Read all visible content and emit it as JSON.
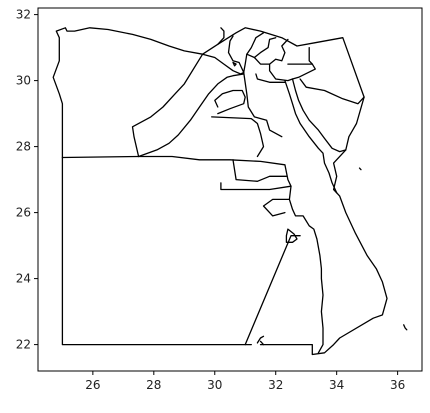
{
  "map": {
    "projection": "plate-carree",
    "bounds": {
      "lon": [
        24.2,
        36.8
      ],
      "lat": [
        21.2,
        32.2
      ]
    },
    "x_ticks": [
      26,
      28,
      30,
      32,
      34,
      36
    ],
    "y_ticks": [
      22,
      24,
      26,
      28,
      30,
      32
    ],
    "line_color": "#000000",
    "fill_color": "none",
    "grid": false,
    "polylines": [
      {
        "name": "outer-border-west-south",
        "coords": [
          [
            31.2,
            22.0
          ],
          [
            25.0,
            22.0
          ],
          [
            25.0,
            29.3
          ],
          [
            24.9,
            29.6
          ],
          [
            24.7,
            30.1
          ],
          [
            24.9,
            30.6
          ],
          [
            24.9,
            31.3
          ],
          [
            24.8,
            31.5
          ],
          [
            25.1,
            31.6
          ],
          [
            25.15,
            31.5
          ],
          [
            25.4,
            31.5
          ],
          [
            25.9,
            31.6
          ],
          [
            26.5,
            31.55
          ],
          [
            27.3,
            31.4
          ],
          [
            27.9,
            31.25
          ],
          [
            28.5,
            31.05
          ],
          [
            29.0,
            30.9
          ],
          [
            29.6,
            30.8
          ],
          [
            30.1,
            31.1
          ],
          [
            30.7,
            31.45
          ],
          [
            31.0,
            31.6
          ],
          [
            31.5,
            31.5
          ],
          [
            32.2,
            31.3
          ],
          [
            32.7,
            31.05
          ],
          [
            33.3,
            31.15
          ],
          [
            34.2,
            31.3
          ],
          [
            34.9,
            29.5
          ],
          [
            34.65,
            28.7
          ],
          [
            34.4,
            28.3
          ],
          [
            34.3,
            27.9
          ],
          [
            33.9,
            27.5
          ],
          [
            34.0,
            27.1
          ],
          [
            33.9,
            26.7
          ],
          [
            34.1,
            26.5
          ],
          [
            34.3,
            26.0
          ],
          [
            34.6,
            25.4
          ],
          [
            35.0,
            24.7
          ],
          [
            35.3,
            24.3
          ],
          [
            35.5,
            23.9
          ],
          [
            35.65,
            23.4
          ],
          [
            35.5,
            22.9
          ],
          [
            35.2,
            22.8
          ],
          [
            34.1,
            22.2
          ],
          [
            33.9,
            22.0
          ],
          [
            33.6,
            21.75
          ],
          [
            33.2,
            21.7
          ],
          [
            33.2,
            22.0
          ],
          [
            32.5,
            22.0
          ],
          [
            31.5,
            22.0
          ]
        ]
      },
      {
        "name": "gulf-of-suez-shore",
        "coords": [
          [
            32.3,
            30.0
          ],
          [
            32.45,
            29.6
          ],
          [
            32.55,
            29.3
          ],
          [
            32.65,
            29.0
          ],
          [
            32.8,
            28.7
          ],
          [
            33.1,
            28.3
          ],
          [
            33.4,
            27.95
          ],
          [
            33.55,
            27.8
          ],
          [
            33.6,
            27.5
          ],
          [
            33.75,
            27.2
          ],
          [
            33.85,
            26.9
          ],
          [
            34.0,
            26.6
          ]
        ]
      },
      {
        "name": "sinai-west-coast",
        "coords": [
          [
            32.55,
            30.05
          ],
          [
            32.65,
            29.7
          ],
          [
            32.75,
            29.4
          ],
          [
            32.9,
            29.1
          ],
          [
            33.1,
            28.8
          ],
          [
            33.4,
            28.5
          ],
          [
            33.6,
            28.25
          ],
          [
            33.85,
            27.95
          ],
          [
            34.1,
            27.85
          ],
          [
            34.3,
            27.9
          ]
        ]
      },
      {
        "name": "matruh-east",
        "coords": [
          [
            29.6,
            30.8
          ],
          [
            29.0,
            29.9
          ],
          [
            28.7,
            29.6
          ],
          [
            28.3,
            29.2
          ],
          [
            27.9,
            28.9
          ],
          [
            27.3,
            28.6
          ],
          [
            27.35,
            28.3
          ],
          [
            27.5,
            27.7
          ]
        ]
      },
      {
        "name": "matruh-south",
        "coords": [
          [
            25.0,
            27.67
          ],
          [
            27.5,
            27.7
          ],
          [
            28.0,
            27.7
          ],
          [
            28.6,
            27.7
          ],
          [
            29.5,
            27.6
          ],
          [
            30.5,
            27.6
          ],
          [
            31.5,
            27.55
          ],
          [
            32.3,
            27.45
          ],
          [
            32.4,
            27.0
          ],
          [
            32.5,
            26.8
          ],
          [
            32.45,
            26.4
          ],
          [
            32.55,
            26.1
          ],
          [
            32.65,
            25.9
          ],
          [
            32.9,
            25.9
          ],
          [
            33.1,
            25.6
          ],
          [
            33.25,
            25.5
          ],
          [
            33.35,
            25.2
          ],
          [
            33.45,
            24.7
          ],
          [
            33.5,
            24.3
          ],
          [
            33.5,
            24.0
          ],
          [
            33.55,
            23.5
          ],
          [
            33.5,
            23.0
          ],
          [
            33.55,
            22.5
          ],
          [
            33.55,
            22.0
          ],
          [
            33.4,
            21.75
          ]
        ]
      },
      {
        "name": "alexandria-beheira-line",
        "coords": [
          [
            29.6,
            30.8
          ],
          [
            30.0,
            30.7
          ],
          [
            30.3,
            30.5
          ],
          [
            30.6,
            30.3
          ],
          [
            30.85,
            30.2
          ],
          [
            30.95,
            30.25
          ]
        ]
      },
      {
        "name": "giza-west-line",
        "coords": [
          [
            27.5,
            27.7
          ],
          [
            28.1,
            27.9
          ],
          [
            28.5,
            28.1
          ],
          [
            28.8,
            28.35
          ],
          [
            29.2,
            28.8
          ],
          [
            29.5,
            29.2
          ],
          [
            29.8,
            29.6
          ],
          [
            30.1,
            29.9
          ],
          [
            30.4,
            30.1
          ],
          [
            30.6,
            30.15
          ],
          [
            30.95,
            30.2
          ]
        ]
      },
      {
        "name": "fayoum-border",
        "coords": [
          [
            30.1,
            29.0
          ],
          [
            30.5,
            29.15
          ],
          [
            30.95,
            29.3
          ],
          [
            31.0,
            29.5
          ],
          [
            30.9,
            29.7
          ],
          [
            30.6,
            29.7
          ],
          [
            30.25,
            29.6
          ],
          [
            30.0,
            29.4
          ],
          [
            30.1,
            29.2
          ]
        ]
      },
      {
        "name": "beni-suef-minya-line",
        "coords": [
          [
            29.9,
            28.9
          ],
          [
            31.2,
            28.85
          ],
          [
            31.4,
            28.7
          ],
          [
            31.5,
            28.4
          ],
          [
            31.6,
            28.0
          ],
          [
            31.4,
            27.7
          ]
        ]
      },
      {
        "name": "giza-east-line",
        "coords": [
          [
            30.95,
            30.25
          ],
          [
            31.05,
            29.6
          ],
          [
            31.1,
            29.2
          ],
          [
            31.3,
            28.9
          ],
          [
            31.7,
            28.8
          ],
          [
            31.8,
            28.5
          ],
          [
            32.2,
            28.3
          ]
        ]
      },
      {
        "name": "assiut-sohag-line",
        "coords": [
          [
            30.6,
            27.6
          ],
          [
            30.7,
            27.0
          ],
          [
            31.4,
            26.95
          ],
          [
            31.8,
            27.1
          ],
          [
            32.35,
            27.1
          ]
        ]
      },
      {
        "name": "qena-block",
        "coords": [
          [
            30.2,
            26.9
          ],
          [
            30.2,
            26.7
          ],
          [
            31.8,
            26.7
          ],
          [
            32.5,
            26.8
          ]
        ]
      },
      {
        "name": "red-sea-west-line",
        "coords": [
          [
            32.45,
            26.4
          ],
          [
            31.9,
            26.4
          ],
          [
            31.6,
            26.2
          ],
          [
            31.8,
            26.0
          ],
          [
            31.9,
            25.9
          ],
          [
            32.3,
            26.0
          ]
        ]
      },
      {
        "name": "luxor-aswan-line",
        "coords": [
          [
            32.4,
            25.5
          ],
          [
            32.6,
            25.35
          ],
          [
            32.7,
            25.2
          ],
          [
            32.55,
            25.1
          ],
          [
            32.35,
            25.1
          ],
          [
            32.35,
            25.3
          ],
          [
            32.4,
            25.5
          ]
        ]
      },
      {
        "name": "new-valley-aswan-line",
        "coords": [
          [
            31.0,
            22.0
          ],
          [
            32.5,
            25.3
          ],
          [
            32.8,
            25.3
          ]
        ]
      },
      {
        "name": "north-delta-1",
        "coords": [
          [
            30.95,
            30.25
          ],
          [
            30.8,
            30.55
          ],
          [
            30.6,
            30.6
          ],
          [
            30.45,
            30.85
          ],
          [
            30.5,
            31.2
          ],
          [
            30.6,
            31.35
          ]
        ]
      },
      {
        "name": "north-delta-2",
        "coords": [
          [
            30.95,
            30.25
          ],
          [
            31.0,
            30.5
          ],
          [
            31.05,
            30.8
          ],
          [
            31.2,
            31.0
          ],
          [
            31.35,
            31.3
          ],
          [
            31.6,
            31.45
          ]
        ]
      },
      {
        "name": "north-delta-3",
        "coords": [
          [
            31.05,
            30.8
          ],
          [
            31.3,
            30.7
          ],
          [
            31.5,
            30.85
          ],
          [
            31.75,
            31.0
          ],
          [
            31.8,
            31.25
          ],
          [
            32.0,
            31.3
          ]
        ]
      },
      {
        "name": "north-delta-4",
        "coords": [
          [
            31.3,
            30.7
          ],
          [
            31.5,
            30.5
          ],
          [
            31.8,
            30.5
          ],
          [
            32.0,
            30.65
          ],
          [
            32.2,
            30.6
          ],
          [
            32.3,
            30.85
          ],
          [
            32.2,
            31.05
          ],
          [
            32.4,
            31.25
          ]
        ]
      },
      {
        "name": "sharqia-ismailia-line",
        "coords": [
          [
            31.8,
            30.5
          ],
          [
            31.8,
            30.3
          ],
          [
            32.0,
            30.05
          ],
          [
            32.4,
            30.0
          ],
          [
            32.55,
            30.05
          ]
        ]
      },
      {
        "name": "cairo-suez-line",
        "coords": [
          [
            31.35,
            30.2
          ],
          [
            31.4,
            30.05
          ],
          [
            31.8,
            29.95
          ],
          [
            32.3,
            29.95
          ]
        ]
      },
      {
        "name": "ismailia-sinai-line",
        "coords": [
          [
            32.4,
            30.5
          ],
          [
            33.2,
            30.5
          ],
          [
            33.3,
            30.35
          ],
          [
            32.75,
            30.1
          ],
          [
            32.55,
            30.05
          ]
        ]
      },
      {
        "name": "north-sinai-south",
        "coords": [
          [
            32.8,
            30.05
          ],
          [
            33.0,
            29.8
          ],
          [
            33.6,
            29.7
          ],
          [
            34.2,
            29.45
          ],
          [
            34.7,
            29.3
          ],
          [
            34.9,
            29.5
          ]
        ]
      },
      {
        "name": "sinai-vertical",
        "coords": [
          [
            33.1,
            31.0
          ],
          [
            33.1,
            30.6
          ],
          [
            33.2,
            30.5
          ]
        ]
      },
      {
        "name": "delta-west-inner",
        "coords": [
          [
            30.1,
            31.1
          ],
          [
            30.3,
            31.3
          ],
          [
            30.3,
            31.5
          ],
          [
            30.2,
            31.6
          ]
        ]
      },
      {
        "name": "alexandria-lake",
        "coords": [
          [
            30.6,
            30.55
          ],
          [
            30.7,
            30.5
          ],
          [
            30.65,
            30.45
          ],
          [
            30.6,
            30.55
          ]
        ]
      },
      {
        "name": "red-sea-island",
        "coords": [
          [
            31.4,
            22.05
          ],
          [
            31.5,
            22.2
          ],
          [
            31.6,
            22.25
          ]
        ]
      },
      {
        "name": "aswan-lake-tip",
        "coords": [
          [
            31.6,
            22.0
          ],
          [
            31.5,
            22.1
          ]
        ]
      },
      {
        "name": "small-island-east",
        "coords": [
          [
            36.2,
            22.6
          ],
          [
            36.25,
            22.5
          ],
          [
            36.3,
            22.45
          ]
        ]
      },
      {
        "name": "sinai-coast-islet",
        "coords": [
          [
            34.75,
            27.35
          ],
          [
            34.8,
            27.3
          ]
        ]
      }
    ]
  }
}
